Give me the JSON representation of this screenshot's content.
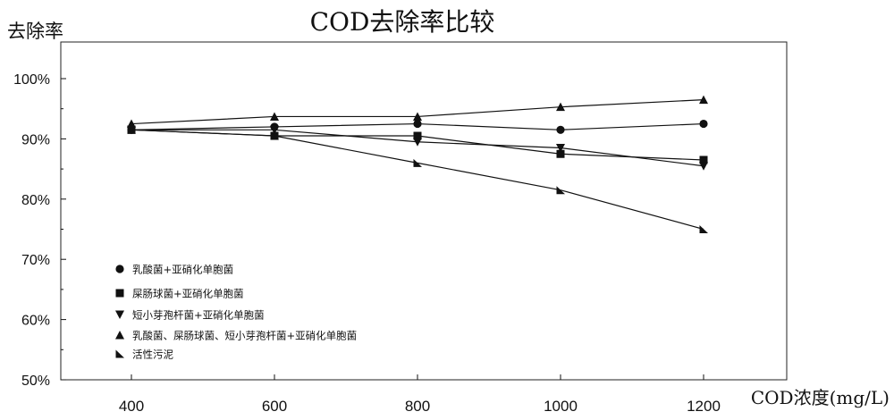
{
  "chart_data": {
    "type": "line",
    "title": "COD去除率比较",
    "ylabel": "去除率",
    "xlabel": "COD浓度(mg/L)",
    "x": [
      400,
      600,
      800,
      1000,
      1200
    ],
    "x_tick_labels": [
      "400",
      "600",
      "800",
      "1000",
      "1200"
    ],
    "ylim": [
      50,
      100
    ],
    "y_tick_labels": [
      "50%",
      "60%",
      "70%",
      "80%",
      "90%",
      "100%"
    ],
    "y_ticks": [
      50,
      60,
      70,
      80,
      90,
      100
    ],
    "grid": false,
    "legend_position": "bottom-left",
    "series": [
      {
        "name": "乳酸菌+亚硝化单胞菌",
        "marker": "circle",
        "values": [
          91.5,
          92.0,
          92.5,
          91.5,
          92.5
        ]
      },
      {
        "name": "屎肠球菌+亚硝化单胞菌",
        "marker": "square",
        "values": [
          91.5,
          90.5,
          90.5,
          87.5,
          86.5
        ]
      },
      {
        "name": "短小芽孢杆菌+亚硝化单胞菌",
        "marker": "triangle-down",
        "values": [
          91.5,
          91.5,
          89.5,
          88.5,
          85.5
        ]
      },
      {
        "name": "乳酸菌、屎肠球菌、短小芽孢杆菌+亚硝化单胞菌",
        "marker": "triangle-up",
        "values": [
          92.5,
          93.7,
          93.7,
          95.3,
          96.5
        ]
      },
      {
        "name": "活性污泥",
        "marker": "right-triangle",
        "values": [
          91.5,
          90.5,
          86.0,
          81.5,
          75.0
        ]
      }
    ],
    "colors": {
      "line": "#111111",
      "marker": "#111111"
    }
  }
}
